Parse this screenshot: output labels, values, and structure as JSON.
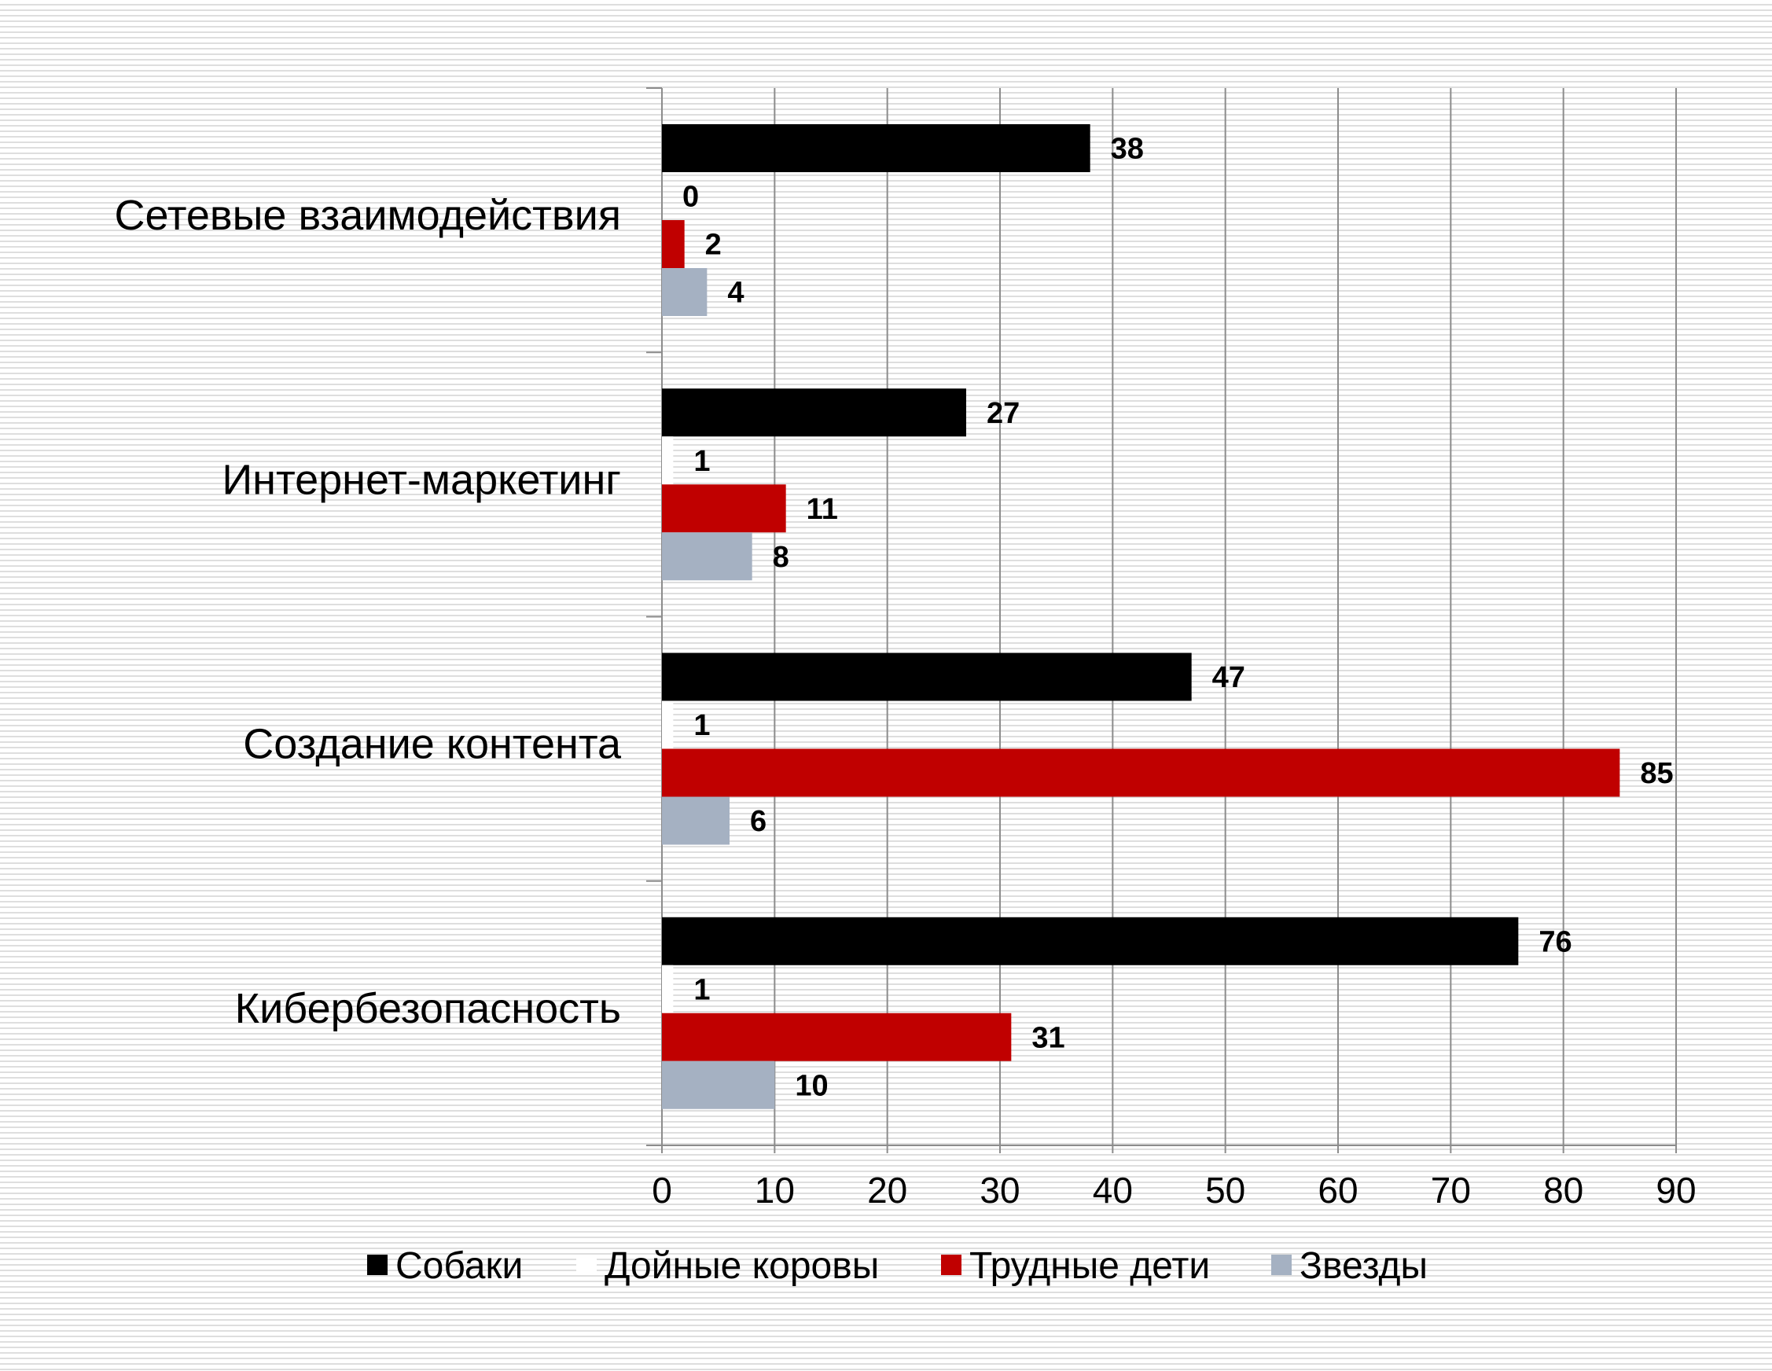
{
  "chart_data": {
    "type": "bar",
    "orientation": "horizontal",
    "categories": [
      "Сетевые взаимодействия",
      "Интернет-маркетинг",
      "Создание контента",
      "Кибербезопасность"
    ],
    "series": [
      {
        "name": "Собаки",
        "color": "#000000",
        "values": [
          38,
          27,
          47,
          76
        ]
      },
      {
        "name": "Дойные коровы",
        "color": "#ffffff",
        "values": [
          0,
          1,
          1,
          1
        ]
      },
      {
        "name": "Трудные дети",
        "color": "#c00000",
        "values": [
          2,
          11,
          85,
          31
        ]
      },
      {
        "name": "Звезды",
        "color": "#a5b1c2",
        "values": [
          4,
          8,
          6,
          10
        ]
      }
    ],
    "xlim": [
      0,
      90
    ],
    "xticks": [
      "0",
      "10",
      "20",
      "30",
      "40",
      "50",
      "60",
      "70",
      "80",
      "90"
    ],
    "grid": true,
    "legend": "bottom",
    "data_labels": true
  }
}
